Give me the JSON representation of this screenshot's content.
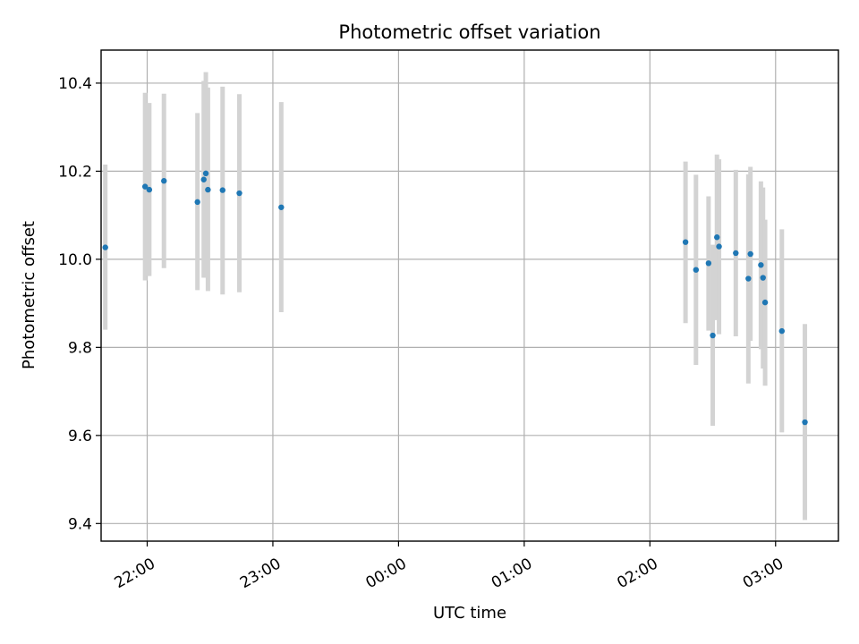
{
  "chart_data": {
    "type": "scatter",
    "title": "Photometric offset variation",
    "xlabel": "UTC time",
    "ylabel": "Photometric offset",
    "xlim": [
      "21:38",
      "03:30"
    ],
    "ylim": [
      9.36,
      10.475
    ],
    "grid": true,
    "x_ticks": [
      "22:00",
      "23:00",
      "00:00",
      "01:00",
      "02:00",
      "03:00"
    ],
    "y_ticks": [
      "9.4",
      "9.6",
      "9.8",
      "10.0",
      "10.2",
      "10.4"
    ],
    "colors": {
      "points": "#1f77b4",
      "error_bars": "#d3d3d3",
      "grid": "#b0b0b0"
    },
    "series": [
      {
        "points": [
          {
            "x": "21:40",
            "y": 10.027,
            "low": 9.84,
            "high": 10.215
          },
          {
            "x": "21:59",
            "y": 10.165,
            "low": 9.952,
            "high": 10.378
          },
          {
            "x": "22:01",
            "y": 10.158,
            "low": 9.962,
            "high": 10.355
          },
          {
            "x": "22:08",
            "y": 10.178,
            "low": 9.98,
            "high": 10.376
          },
          {
            "x": "22:24",
            "y": 10.13,
            "low": 9.93,
            "high": 10.332
          },
          {
            "x": "22:27",
            "y": 10.181,
            "low": 9.958,
            "high": 10.405
          },
          {
            "x": "22:28",
            "y": 10.195,
            "low": 9.962,
            "high": 10.425
          },
          {
            "x": "22:29",
            "y": 10.158,
            "low": 9.928,
            "high": 10.39
          },
          {
            "x": "22:36",
            "y": 10.157,
            "low": 9.92,
            "high": 10.392
          },
          {
            "x": "22:44",
            "y": 10.15,
            "low": 9.925,
            "high": 10.375
          },
          {
            "x": "23:04",
            "y": 10.118,
            "low": 9.88,
            "high": 10.357
          },
          {
            "x": "02:17",
            "y": 10.039,
            "low": 9.855,
            "high": 10.222
          },
          {
            "x": "02:22",
            "y": 9.976,
            "low": 9.76,
            "high": 10.192
          },
          {
            "x": "02:28",
            "y": 9.991,
            "low": 9.838,
            "high": 10.143
          },
          {
            "x": "02:30",
            "y": 9.827,
            "low": 9.622,
            "high": 10.033
          },
          {
            "x": "02:32",
            "y": 10.05,
            "low": 9.862,
            "high": 10.238
          },
          {
            "x": "02:33",
            "y": 10.029,
            "low": 9.83,
            "high": 10.227
          },
          {
            "x": "02:41",
            "y": 10.014,
            "low": 9.825,
            "high": 10.203
          },
          {
            "x": "02:47",
            "y": 9.956,
            "low": 9.718,
            "high": 10.193
          },
          {
            "x": "02:48",
            "y": 10.012,
            "low": 9.815,
            "high": 10.21
          },
          {
            "x": "02:53",
            "y": 9.987,
            "low": 9.796,
            "high": 10.177
          },
          {
            "x": "02:54",
            "y": 9.958,
            "low": 9.752,
            "high": 10.163
          },
          {
            "x": "02:55",
            "y": 9.902,
            "low": 9.713,
            "high": 10.09
          },
          {
            "x": "03:03",
            "y": 9.837,
            "low": 9.607,
            "high": 10.068
          },
          {
            "x": "03:14",
            "y": 9.63,
            "low": 9.408,
            "high": 9.853
          }
        ]
      }
    ]
  }
}
